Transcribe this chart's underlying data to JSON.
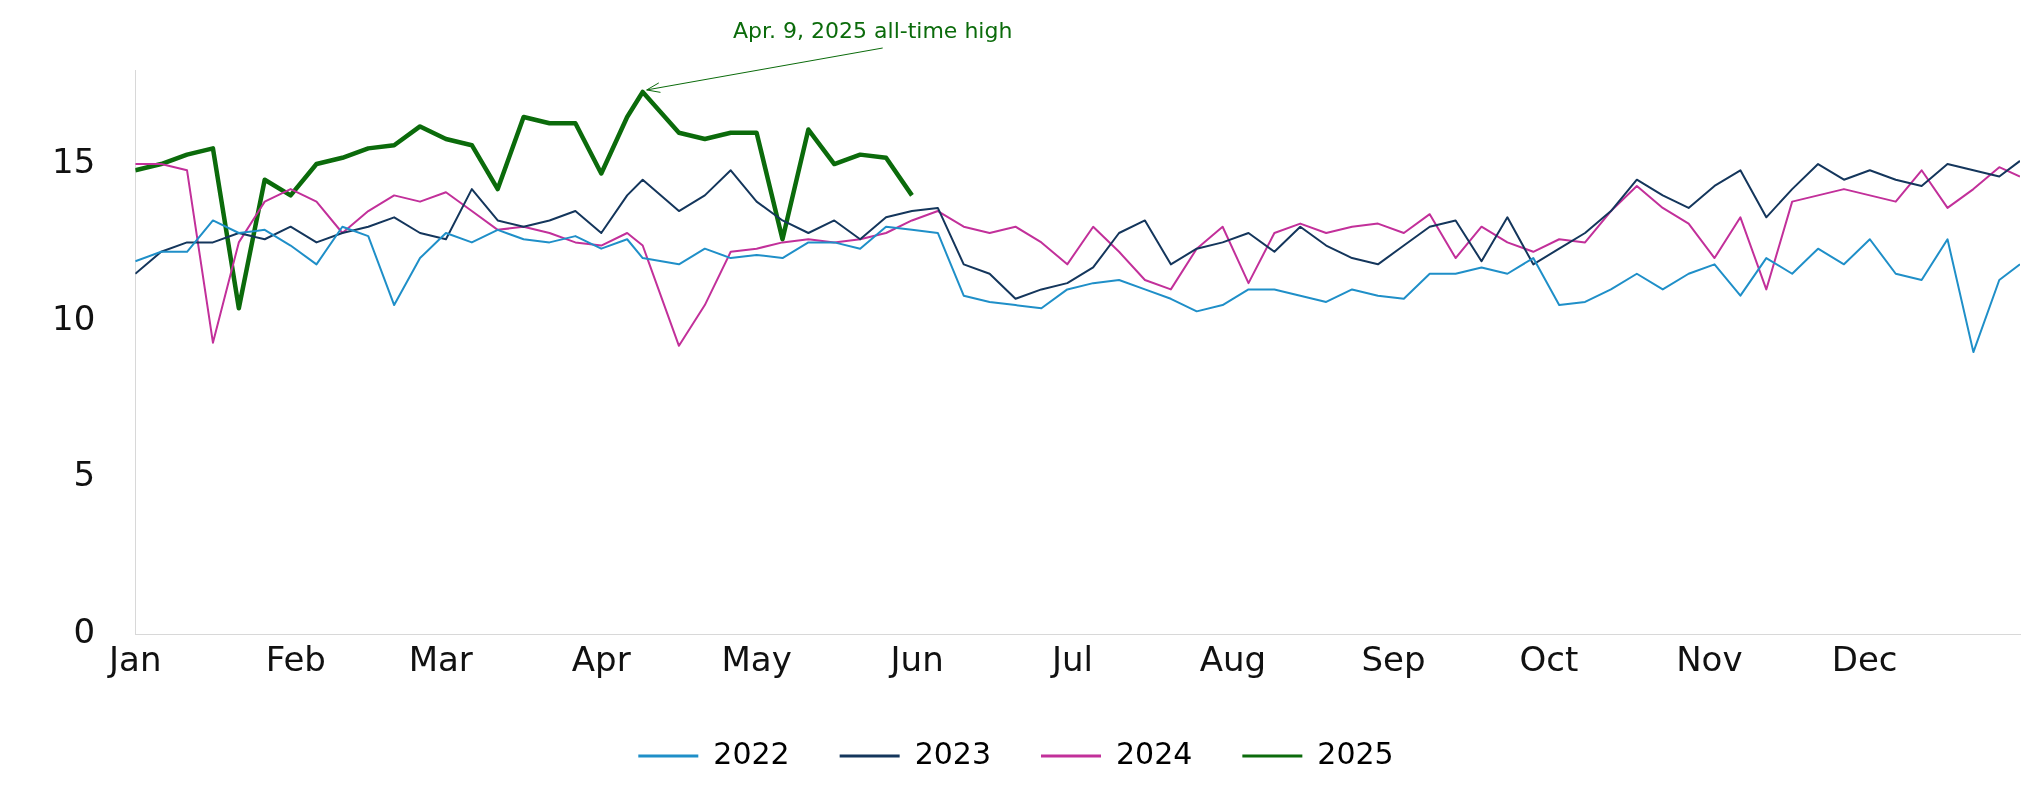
{
  "chart_data": {
    "type": "line",
    "x": [
      "--01-01",
      "--01-06",
      "--01-11",
      "--01-16",
      "--01-21",
      "--01-26",
      "--01-31",
      "--02-05",
      "--02-10",
      "--02-15",
      "--02-20",
      "--02-25",
      "--03-02",
      "--03-07",
      "--03-12",
      "--03-17",
      "--03-22",
      "--03-27",
      "--04-01",
      "--04-06",
      "--04-09",
      "--04-16",
      "--04-21",
      "--04-26",
      "--05-01",
      "--05-06",
      "--05-11",
      "--05-16",
      "--05-21",
      "--05-26",
      "--05-31",
      "--06-05",
      "--06-10",
      "--06-15",
      "--06-20",
      "--06-25",
      "--06-30",
      "--07-05",
      "--07-10",
      "--07-15",
      "--07-20",
      "--07-25",
      "--07-30",
      "--08-04",
      "--08-09",
      "--08-14",
      "--08-19",
      "--08-24",
      "--08-29",
      "--09-03",
      "--09-08",
      "--09-13",
      "--09-18",
      "--09-23",
      "--09-28",
      "--10-03",
      "--10-08",
      "--10-13",
      "--10-18",
      "--10-23",
      "--10-28",
      "--11-02",
      "--11-07",
      "--11-12",
      "--11-17",
      "--11-22",
      "--11-27",
      "--12-02",
      "--12-07",
      "--12-12",
      "--12-17",
      "--12-22",
      "--12-27",
      "--12-31"
    ],
    "series": [
      {
        "name": "2022",
        "color": "#1f8fc8",
        "values": [
          11.9,
          12.2,
          12.2,
          13.2,
          12.8,
          12.9,
          12.4,
          11.8,
          13.0,
          12.7,
          10.5,
          12.0,
          12.8,
          12.5,
          12.9,
          12.6,
          12.5,
          12.7,
          12.3,
          12.6,
          12.0,
          11.8,
          12.3,
          12.0,
          12.1,
          12.0,
          12.5,
          12.5,
          12.3,
          13.0,
          12.9,
          12.8,
          10.8,
          10.6,
          10.5,
          10.4,
          11.0,
          11.2,
          11.3,
          11.0,
          10.7,
          10.3,
          10.5,
          11.0,
          11.0,
          10.8,
          10.6,
          11.0,
          10.8,
          10.7,
          11.5,
          11.5,
          11.7,
          11.5,
          12.0,
          10.5,
          10.6,
          11.0,
          11.5,
          11.0,
          11.5,
          11.8,
          10.8,
          12.0,
          11.5,
          12.3,
          11.8,
          12.6,
          11.5,
          11.3,
          12.6,
          9.0,
          11.3,
          11.8
        ]
      },
      {
        "name": "2023",
        "color": "#14365c",
        "values": [
          11.5,
          12.2,
          12.5,
          12.5,
          12.8,
          12.6,
          13.0,
          12.5,
          12.8,
          13.0,
          13.3,
          12.8,
          12.6,
          14.2,
          13.2,
          13.0,
          13.2,
          13.5,
          12.8,
          14.0,
          14.5,
          13.5,
          14.0,
          14.8,
          13.8,
          13.2,
          12.8,
          13.2,
          12.6,
          13.3,
          13.5,
          13.6,
          11.8,
          11.5,
          10.7,
          11.0,
          11.2,
          11.7,
          12.8,
          13.2,
          11.8,
          12.3,
          12.5,
          12.8,
          12.2,
          13.0,
          12.4,
          12.0,
          11.8,
          12.4,
          13.0,
          13.2,
          11.9,
          13.3,
          11.8,
          12.3,
          12.8,
          13.5,
          14.5,
          14.0,
          13.6,
          14.3,
          14.8,
          13.3,
          14.2,
          15.0,
          14.5,
          14.8,
          14.5,
          14.3,
          15.0,
          14.8,
          14.6,
          15.1
        ]
      },
      {
        "name": "2024",
        "color": "#c2309a",
        "values": [
          15.0,
          15.0,
          14.8,
          9.3,
          12.5,
          13.8,
          14.2,
          13.8,
          12.8,
          13.5,
          14.0,
          13.8,
          14.1,
          13.5,
          12.9,
          13.0,
          12.8,
          12.5,
          12.4,
          12.8,
          12.4,
          9.2,
          10.5,
          12.2,
          12.3,
          12.5,
          12.6,
          12.5,
          12.6,
          12.8,
          13.2,
          13.5,
          13.0,
          12.8,
          13.0,
          12.5,
          11.8,
          13.0,
          12.2,
          11.3,
          11.0,
          12.3,
          13.0,
          11.2,
          12.8,
          13.1,
          12.8,
          13.0,
          13.1,
          12.8,
          13.4,
          12.0,
          13.0,
          12.5,
          12.2,
          12.6,
          12.5,
          13.5,
          14.3,
          13.6,
          13.1,
          12.0,
          13.3,
          11.0,
          13.8,
          14.0,
          14.2,
          14.0,
          13.8,
          14.8,
          13.6,
          14.2,
          14.9,
          14.6
        ]
      },
      {
        "name": "2025",
        "color": "#0b6b0b",
        "values": [
          14.8,
          15.0,
          15.3,
          15.5,
          10.4,
          14.5,
          14.0,
          15.0,
          15.2,
          15.5,
          15.6,
          16.2,
          15.8,
          15.6,
          14.2,
          16.5,
          16.3,
          16.3,
          14.7,
          16.5,
          17.3,
          16.0,
          15.8,
          16.0,
          16.0,
          12.6,
          16.1,
          15.0,
          15.3,
          15.2,
          14.0,
          null,
          null,
          null,
          null,
          null,
          null,
          null,
          null,
          null,
          null,
          null,
          null,
          null,
          null,
          null,
          null,
          null,
          null,
          null,
          null,
          null,
          null,
          null,
          null,
          null,
          null,
          null,
          null,
          null,
          null,
          null,
          null,
          null,
          null,
          null,
          null,
          null,
          null,
          null,
          null,
          null,
          null,
          null
        ]
      }
    ],
    "xticks": [
      {
        "value": "--01-01",
        "label": "Jan"
      },
      {
        "value": "--02-01",
        "label": "Feb"
      },
      {
        "value": "--03-01",
        "label": "Mar"
      },
      {
        "value": "--04-01",
        "label": "Apr"
      },
      {
        "value": "--05-01",
        "label": "May"
      },
      {
        "value": "--06-01",
        "label": "Jun"
      },
      {
        "value": "--07-01",
        "label": "Jul"
      },
      {
        "value": "--08-01",
        "label": "Aug"
      },
      {
        "value": "--09-01",
        "label": "Sep"
      },
      {
        "value": "--10-01",
        "label": "Oct"
      },
      {
        "value": "--11-01",
        "label": "Nov"
      },
      {
        "value": "--12-01",
        "label": "Dec"
      }
    ],
    "xlim": [
      "--01-01",
      "--12-31"
    ],
    "ylim": [
      0,
      18
    ],
    "yticks": [
      0,
      5,
      10,
      15
    ],
    "annotations": [
      {
        "text": "Apr. 9, 2025 all-time high",
        "x": "--04-09",
        "y": 17.3
      }
    ],
    "legend": "bottom",
    "grid": false,
    "marker": "none",
    "line_style": "solid"
  }
}
